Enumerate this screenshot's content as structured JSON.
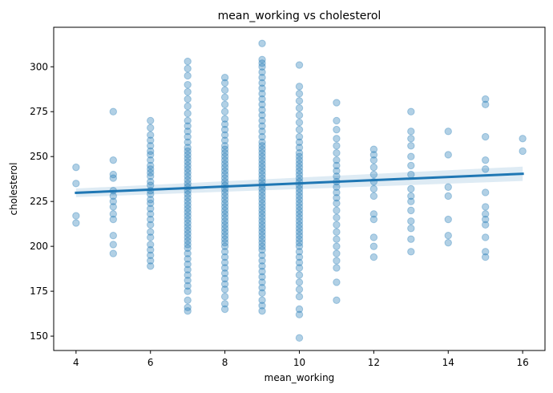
{
  "chart_data": {
    "type": "scatter",
    "title": "mean_working vs cholesterol",
    "xlabel": "mean_working",
    "ylabel": "cholesterol",
    "xlim": [
      3.4,
      16.6
    ],
    "ylim": [
      142,
      322
    ],
    "x_ticks": [
      4,
      6,
      8,
      10,
      12,
      14,
      16
    ],
    "y_ticks": [
      150,
      175,
      200,
      225,
      250,
      275,
      300
    ],
    "grid": false,
    "colors": {
      "points": "#1f77b4",
      "line": "#1f77b4",
      "band": "#1f77b4"
    },
    "points": {
      "4": [
        213,
        217,
        235,
        244
      ],
      "5": [
        196,
        201,
        206,
        215,
        218,
        222,
        225,
        228,
        231,
        238,
        240,
        248,
        275
      ],
      "6": [
        189,
        192,
        195,
        198,
        201,
        205,
        208,
        212,
        215,
        218,
        221,
        224,
        226,
        229,
        231,
        234,
        236,
        239,
        241,
        243,
        245,
        248,
        251,
        253,
        256,
        259,
        262,
        266,
        270
      ],
      "7": [
        164,
        166,
        170,
        175,
        178,
        181,
        184,
        187,
        190,
        193,
        196,
        199,
        201,
        203,
        205,
        207,
        209,
        211,
        213,
        215,
        217,
        219,
        221,
        223,
        225,
        227,
        229,
        231,
        233,
        235,
        237,
        239,
        241,
        243,
        245,
        247,
        249,
        251,
        253,
        255,
        258,
        261,
        264,
        267,
        270,
        274,
        278,
        282,
        286,
        290,
        295,
        299,
        303
      ],
      "8": [
        165,
        168,
        172,
        176,
        179,
        182,
        185,
        188,
        191,
        194,
        197,
        200,
        202,
        204,
        206,
        208,
        210,
        212,
        214,
        216,
        218,
        220,
        222,
        224,
        226,
        228,
        230,
        232,
        234,
        236,
        238,
        240,
        242,
        244,
        246,
        248,
        250,
        252,
        254,
        256,
        259,
        262,
        265,
        268,
        271,
        275,
        279,
        283,
        287,
        291,
        294
      ],
      "9": [
        164,
        167,
        170,
        174,
        177,
        180,
        183,
        186,
        189,
        192,
        195,
        198,
        200,
        202,
        204,
        206,
        208,
        210,
        212,
        214,
        216,
        218,
        220,
        222,
        224,
        226,
        228,
        230,
        232,
        234,
        236,
        238,
        240,
        242,
        244,
        246,
        248,
        250,
        252,
        254,
        256,
        258,
        261,
        264,
        267,
        270,
        273,
        276,
        279,
        282,
        285,
        288,
        291,
        294,
        297,
        300,
        302,
        304,
        313
      ],
      "10": [
        149,
        162,
        165,
        172,
        176,
        180,
        184,
        188,
        191,
        194,
        197,
        200,
        202,
        204,
        206,
        208,
        210,
        212,
        214,
        216,
        218,
        220,
        222,
        224,
        226,
        228,
        230,
        232,
        234,
        236,
        238,
        240,
        242,
        244,
        246,
        248,
        250,
        252,
        255,
        258,
        261,
        265,
        269,
        273,
        277,
        281,
        285,
        289,
        301
      ],
      "11": [
        170,
        180,
        188,
        192,
        196,
        200,
        204,
        208,
        212,
        216,
        220,
        224,
        227,
        230,
        233,
        236,
        239,
        242,
        245,
        248,
        252,
        256,
        260,
        265,
        270,
        280
      ],
      "12": [
        194,
        200,
        205,
        215,
        218,
        228,
        232,
        236,
        240,
        244,
        248,
        251,
        254
      ],
      "13": [
        197,
        204,
        210,
        214,
        220,
        225,
        228,
        232,
        240,
        245,
        250,
        256,
        260,
        264,
        275
      ],
      "14": [
        202,
        206,
        215,
        228,
        233,
        251,
        264
      ],
      "15": [
        194,
        197,
        205,
        212,
        215,
        218,
        222,
        230,
        243,
        248,
        261,
        279,
        282
      ],
      "16": [
        253,
        260
      ]
    },
    "regression": {
      "x": [
        4,
        16
      ],
      "y": [
        229.8,
        240.4
      ],
      "ci_half_width": [
        2.4,
        4.0
      ]
    }
  }
}
